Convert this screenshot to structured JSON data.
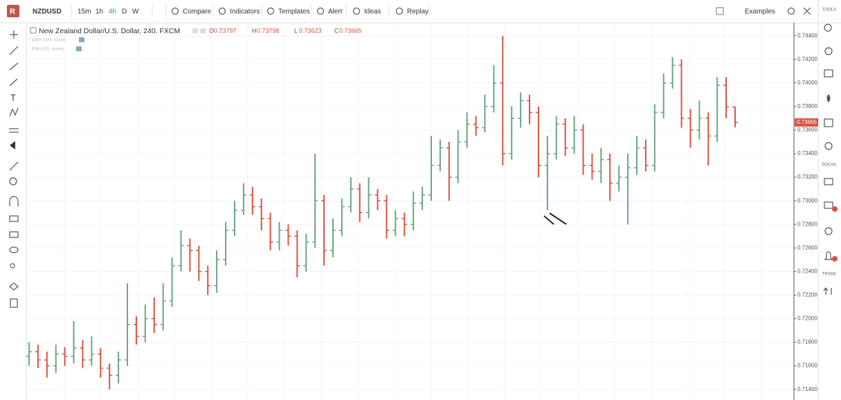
{
  "toolbar": {
    "symbol": "NZDUSD",
    "intervals": [
      "15m",
      "1h",
      "4h",
      "D",
      "W"
    ],
    "buttons": [
      "Compare",
      "Indicators",
      "Templates",
      "Alert",
      "Ideas",
      "Replay"
    ],
    "examples": "Examples"
  },
  "sidebar": {
    "sections": [
      "TOOLS",
      "SOCIAL",
      "TRADE"
    ]
  },
  "chart_data": {
    "type": "ohlc",
    "title": "New Zealand Dollar/U.S. Dollar, 240, FXCM",
    "ohlc_legend": {
      "letters": [
        "O",
        "H",
        "L",
        "C"
      ],
      "values": [
        "0.73797",
        "0.73798",
        "0.73623",
        "0.73665"
      ]
    },
    "indicators": [
      "EMA (200, close)",
      "EMA (50, close)"
    ],
    "price_tag": "0.73665",
    "up_color": "#6ba583",
    "down_color": "#d75442",
    "ylim": [
      0.7131,
      0.7451
    ],
    "yticks": [
      {
        "value": 0.744,
        "label": "0.74400"
      },
      {
        "value": 0.742,
        "label": "0.74200"
      },
      {
        "value": 0.74,
        "label": "0.74000"
      },
      {
        "value": 0.738,
        "label": "0.73800"
      },
      {
        "value": 0.736,
        "label": "0.73600"
      },
      {
        "value": 0.734,
        "label": "0.73400"
      },
      {
        "value": 0.732,
        "label": "0.73200"
      },
      {
        "value": 0.73,
        "label": "0.73000"
      },
      {
        "value": 0.728,
        "label": "0.72800"
      },
      {
        "value": 0.726,
        "label": "0.72600"
      },
      {
        "value": 0.724,
        "label": "0.72400"
      },
      {
        "value": 0.722,
        "label": "0.72200"
      },
      {
        "value": 0.72,
        "label": "0.72000"
      },
      {
        "value": 0.718,
        "label": "0.71800"
      },
      {
        "value": 0.716,
        "label": "0.71600"
      },
      {
        "value": 0.714,
        "label": "0.71400"
      }
    ],
    "open": [
      0.7168,
      0.7172,
      0.7165,
      0.716,
      0.717,
      0.7168,
      0.7175,
      0.7165,
      0.717,
      0.7158,
      0.7152,
      0.7165,
      0.7195,
      0.7185,
      0.72,
      0.7195,
      0.7215,
      0.7245,
      0.7262,
      0.7258,
      0.724,
      0.7228,
      0.725,
      0.7275,
      0.7292,
      0.7305,
      0.7295,
      0.7285,
      0.7265,
      0.7275,
      0.727,
      0.7245,
      0.7265,
      0.73,
      0.7258,
      0.7275,
      0.7295,
      0.731,
      0.729,
      0.7305,
      0.73,
      0.7275,
      0.7285,
      0.728,
      0.7298,
      0.7305,
      0.733,
      0.7345,
      0.732,
      0.735,
      0.7365,
      0.7362,
      0.738,
      0.74,
      0.734,
      0.737,
      0.7385,
      0.7375,
      0.733,
      0.734,
      0.7365,
      0.7345,
      0.736,
      0.733,
      0.7325,
      0.7335,
      0.7315,
      0.732,
      0.7328,
      0.7345,
      0.733,
      0.7375,
      0.74,
      0.7415,
      0.737,
      0.736,
      0.737,
      0.7355,
      0.7398,
      0.73797
    ],
    "high": [
      0.718,
      0.7178,
      0.7172,
      0.7178,
      0.7176,
      0.7198,
      0.7182,
      0.7185,
      0.7175,
      0.7162,
      0.7172,
      0.723,
      0.7202,
      0.7212,
      0.7218,
      0.723,
      0.7252,
      0.7275,
      0.7268,
      0.7262,
      0.7245,
      0.7258,
      0.7282,
      0.73,
      0.7315,
      0.7312,
      0.7302,
      0.729,
      0.7282,
      0.728,
      0.7275,
      0.7272,
      0.734,
      0.7305,
      0.7285,
      0.7302,
      0.732,
      0.7315,
      0.732,
      0.731,
      0.7305,
      0.7292,
      0.729,
      0.7308,
      0.7312,
      0.7355,
      0.7352,
      0.735,
      0.736,
      0.7375,
      0.7372,
      0.739,
      0.7415,
      0.744,
      0.738,
      0.7392,
      0.739,
      0.738,
      0.7355,
      0.7372,
      0.737,
      0.7372,
      0.7365,
      0.734,
      0.7345,
      0.734,
      0.733,
      0.734,
      0.7355,
      0.7352,
      0.7382,
      0.7408,
      0.7422,
      0.742,
      0.7378,
      0.7385,
      0.7375,
      0.7405,
      0.7405,
      0.73798
    ],
    "low": [
      0.716,
      0.7158,
      0.715,
      0.7154,
      0.716,
      0.7162,
      0.7158,
      0.716,
      0.715,
      0.714,
      0.7145,
      0.716,
      0.7178,
      0.718,
      0.7188,
      0.719,
      0.721,
      0.724,
      0.724,
      0.7232,
      0.722,
      0.7222,
      0.7245,
      0.727,
      0.7288,
      0.7288,
      0.7275,
      0.7258,
      0.7258,
      0.7262,
      0.7235,
      0.724,
      0.726,
      0.7245,
      0.7252,
      0.727,
      0.729,
      0.7282,
      0.7285,
      0.7292,
      0.7268,
      0.727,
      0.727,
      0.7275,
      0.7292,
      0.73,
      0.7325,
      0.73,
      0.7315,
      0.7345,
      0.7355,
      0.7358,
      0.7375,
      0.733,
      0.7335,
      0.7362,
      0.7365,
      0.732,
      0.7292,
      0.7335,
      0.7338,
      0.734,
      0.7322,
      0.7318,
      0.7315,
      0.73,
      0.7308,
      0.728,
      0.7322,
      0.7325,
      0.7325,
      0.737,
      0.7395,
      0.7362,
      0.7345,
      0.7352,
      0.733,
      0.735,
      0.737,
      0.73623
    ],
    "close": [
      0.7172,
      0.7165,
      0.716,
      0.717,
      0.7168,
      0.7175,
      0.7165,
      0.717,
      0.7158,
      0.7152,
      0.7165,
      0.7195,
      0.7185,
      0.72,
      0.7195,
      0.7215,
      0.7245,
      0.7262,
      0.7258,
      0.724,
      0.7228,
      0.725,
      0.7275,
      0.7292,
      0.7305,
      0.7295,
      0.7285,
      0.7265,
      0.7275,
      0.727,
      0.7245,
      0.7265,
      0.73,
      0.7258,
      0.7275,
      0.7295,
      0.731,
      0.729,
      0.7305,
      0.73,
      0.7275,
      0.7285,
      0.728,
      0.7298,
      0.7305,
      0.733,
      0.7345,
      0.732,
      0.735,
      0.7365,
      0.7362,
      0.738,
      0.74,
      0.734,
      0.737,
      0.7385,
      0.7375,
      0.733,
      0.734,
      0.7365,
      0.7345,
      0.736,
      0.733,
      0.7325,
      0.7335,
      0.7315,
      0.732,
      0.7328,
      0.7345,
      0.733,
      0.7375,
      0.74,
      0.7415,
      0.737,
      0.736,
      0.737,
      0.7355,
      0.7398,
      0.73797,
      0.73665
    ]
  }
}
